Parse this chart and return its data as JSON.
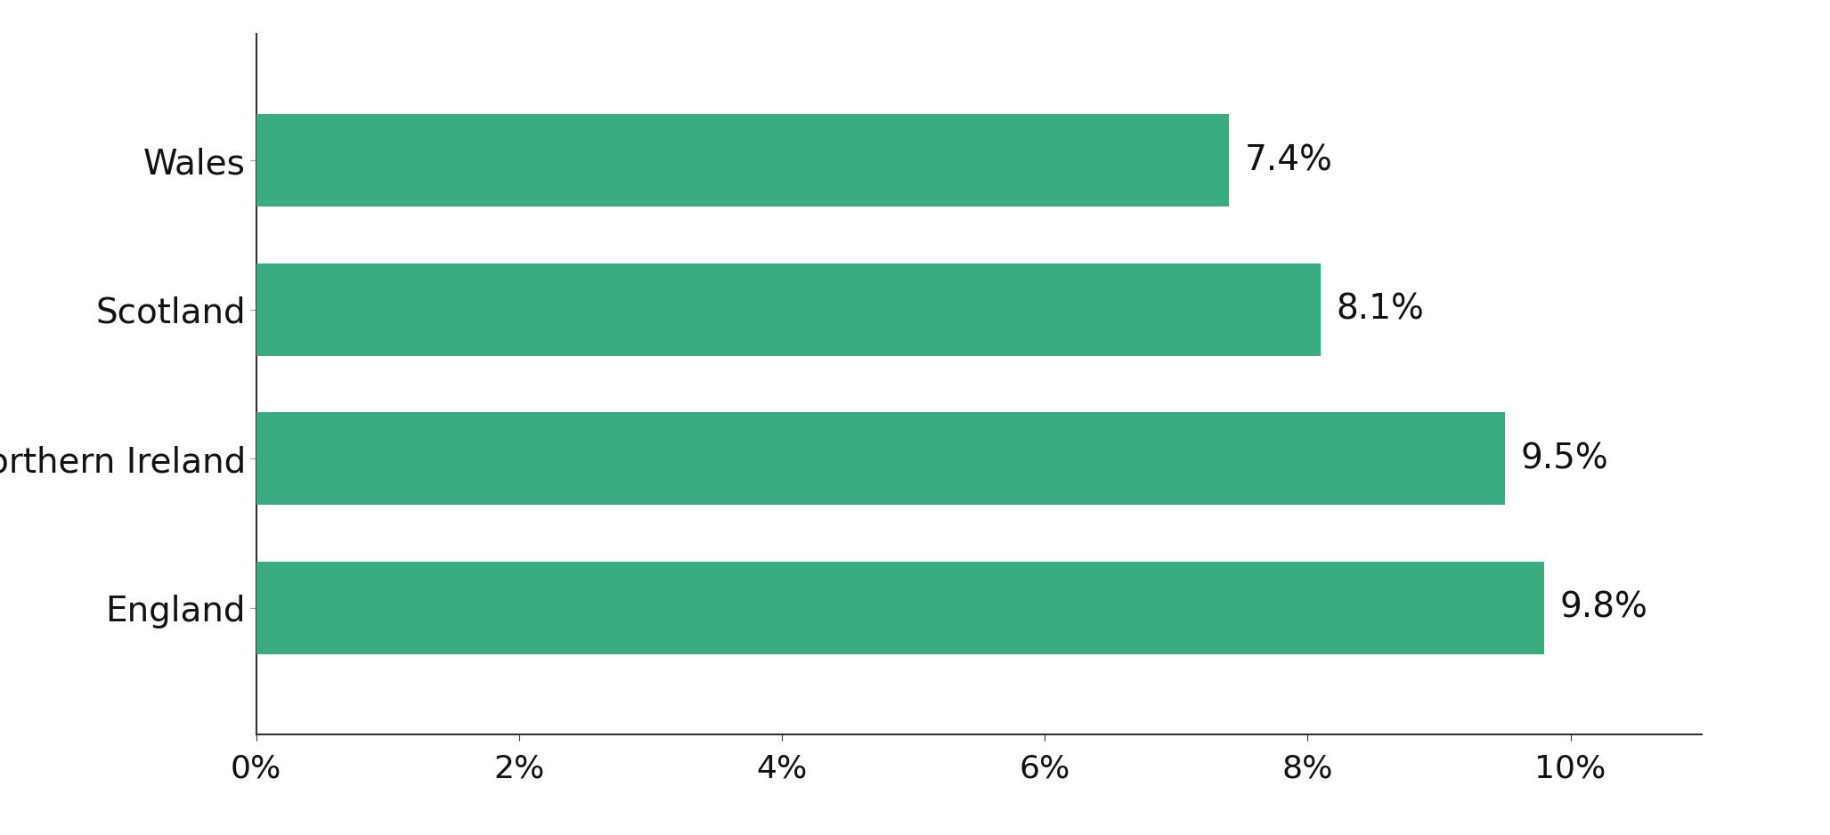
{
  "categories": [
    "Wales",
    "Scotland",
    "Northern Ireland",
    "England"
  ],
  "values": [
    7.4,
    8.1,
    9.5,
    9.8
  ],
  "labels": [
    "7.4%",
    "8.1%",
    "9.5%",
    "9.8%"
  ],
  "bar_color": "#3bab80",
  "background_color": "#ffffff",
  "text_color": "#111111",
  "xlim": [
    0,
    11.0
  ],
  "xticks": [
    0,
    2,
    4,
    6,
    8,
    10
  ],
  "xtick_labels": [
    "0%",
    "2%",
    "4%",
    "6%",
    "8%",
    "10%"
  ],
  "label_fontsize": 28,
  "tick_fontsize": 26,
  "bar_label_fontsize": 28,
  "bar_height": 0.62
}
